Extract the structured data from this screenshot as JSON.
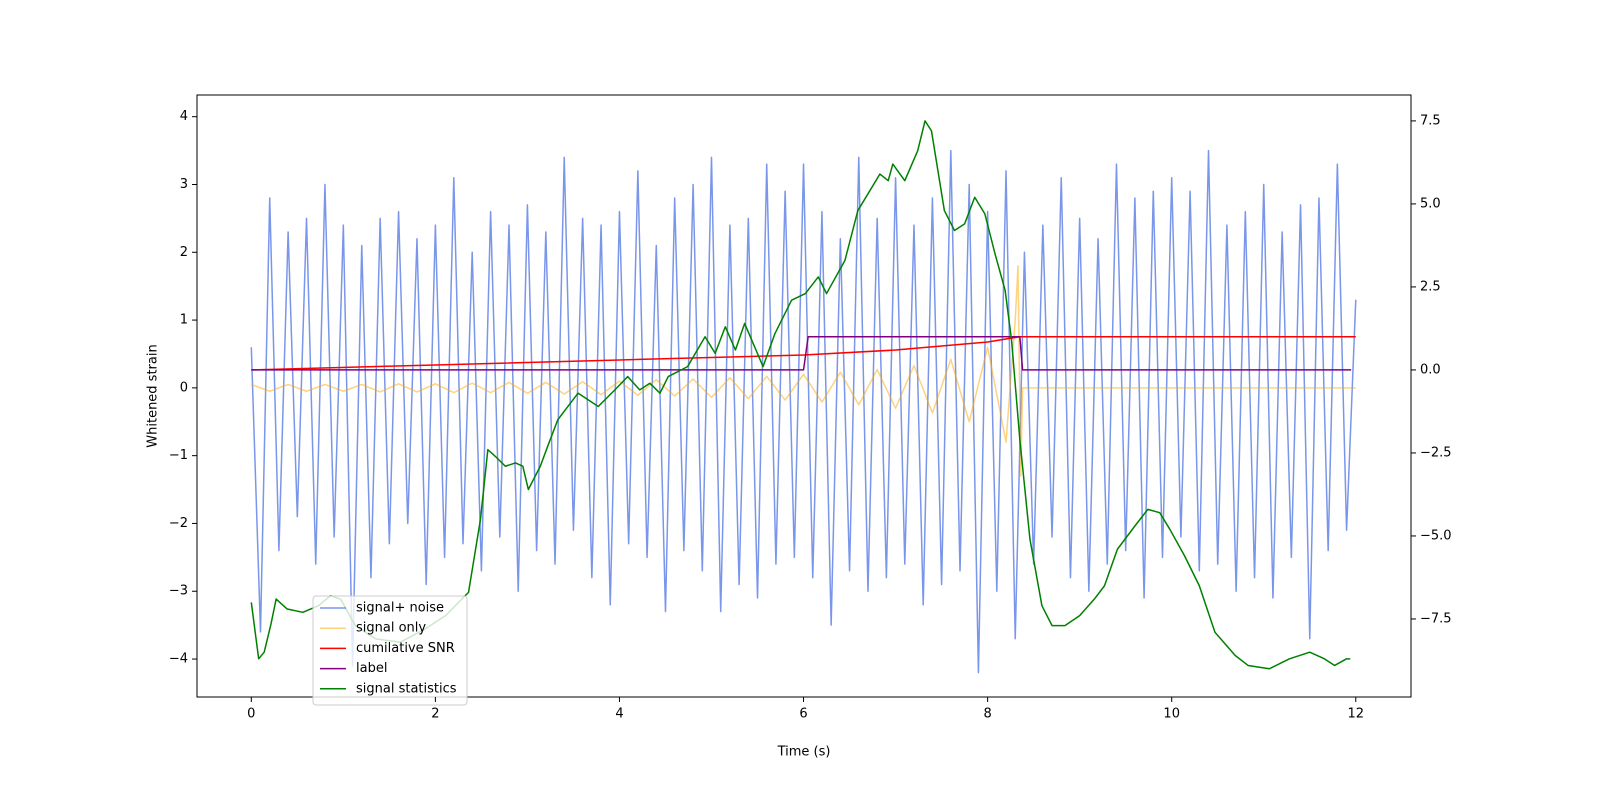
{
  "chart_data": {
    "type": "line",
    "xlabel": "Time (s)",
    "ylabel": "Whitened strain",
    "xlim": [
      -0.59,
      12.6
    ],
    "ylim": [
      -4.56,
      4.32
    ],
    "y2lim": [
      -9.85,
      8.28
    ],
    "xticks": [
      0,
      2,
      4,
      6,
      8,
      10,
      12
    ],
    "yticks": [
      {
        "value": -4,
        "label": "−4"
      },
      {
        "value": -3,
        "label": "−3"
      },
      {
        "value": -2,
        "label": "−2"
      },
      {
        "value": -1,
        "label": "−1"
      },
      0,
      1,
      2,
      3,
      4
    ],
    "y2ticks": [
      {
        "value": -7.5,
        "label": "−7.5"
      },
      {
        "value": -5.0,
        "label": "−5.0"
      },
      {
        "value": -2.5,
        "label": "−2.5"
      },
      {
        "value": 0.0,
        "label": "0.0"
      },
      2.5,
      {
        "value": 5.0,
        "label": "5.0"
      },
      7.5
    ],
    "legend": "lower left",
    "series": [
      {
        "name": "signal+ noise",
        "color": "royalblue",
        "alpha": 0.7,
        "axis": "y",
        "x": [
          0,
          0.1,
          0.2,
          0.3,
          0.4,
          0.5,
          0.6,
          0.7,
          0.8,
          0.9,
          1,
          1.1,
          1.2,
          1.3,
          1.4,
          1.5,
          1.6,
          1.7,
          1.8,
          1.9,
          2,
          2.1,
          2.2,
          2.3,
          2.4,
          2.5,
          2.6,
          2.7,
          2.8,
          2.9,
          3,
          3.1,
          3.2,
          3.3,
          3.4,
          3.5,
          3.6,
          3.7,
          3.8,
          3.9,
          4,
          4.1,
          4.2,
          4.3,
          4.4,
          4.5,
          4.6,
          4.7,
          4.8,
          4.9,
          5,
          5.1,
          5.2,
          5.3,
          5.4,
          5.5,
          5.6,
          5.7,
          5.8,
          5.9,
          6,
          6.1,
          6.2,
          6.3,
          6.4,
          6.5,
          6.6,
          6.7,
          6.8,
          6.9,
          7,
          7.1,
          7.2,
          7.3,
          7.4,
          7.5,
          7.6,
          7.7,
          7.8,
          7.9,
          8,
          8.1,
          8.2,
          8.3,
          8.4,
          8.5,
          8.6,
          8.7,
          8.8,
          8.9,
          9,
          9.1,
          9.2,
          9.3,
          9.4,
          9.5,
          9.6,
          9.7,
          9.8,
          9.9,
          10,
          10.1,
          10.2,
          10.3,
          10.4,
          10.5,
          10.6,
          10.7,
          10.8,
          10.9,
          11,
          11.1,
          11.2,
          11.3,
          11.4,
          11.5,
          11.6,
          11.7,
          11.8,
          11.9,
          12
        ],
        "values": [
          0.6,
          -3.6,
          2.8,
          -2.4,
          2.3,
          -1.9,
          2.5,
          -2.6,
          3.0,
          -2.2,
          2.4,
          -4.1,
          2.1,
          -2.8,
          2.5,
          -2.3,
          2.6,
          -2.0,
          2.2,
          -2.9,
          2.4,
          -2.5,
          3.1,
          -2.3,
          2.0,
          -2.7,
          2.6,
          -2.2,
          2.4,
          -3.0,
          2.7,
          -2.4,
          2.3,
          -2.6,
          3.4,
          -2.1,
          2.5,
          -2.8,
          2.4,
          -3.2,
          2.6,
          -2.3,
          3.2,
          -2.5,
          2.1,
          -3.3,
          2.8,
          -2.4,
          3.0,
          -2.7,
          3.4,
          -3.3,
          2.4,
          -2.9,
          2.5,
          -3.1,
          3.3,
          -2.6,
          2.9,
          -2.5,
          3.3,
          -2.8,
          2.6,
          -3.5,
          2.2,
          -2.7,
          3.4,
          -3.0,
          2.5,
          -2.8,
          3.1,
          -2.6,
          2.4,
          -3.2,
          2.8,
          -2.9,
          3.5,
          -2.7,
          3.0,
          -4.2,
          2.6,
          -3.0,
          3.2,
          -3.7,
          2.0,
          -2.6,
          2.4,
          -2.2,
          3.1,
          -2.8,
          2.5,
          -3.0,
          2.2,
          -2.6,
          3.3,
          -2.4,
          2.8,
          -3.1,
          2.9,
          -2.5,
          3.1,
          -2.2,
          2.9,
          -2.7,
          3.5,
          -2.6,
          2.4,
          -3.0,
          2.6,
          -2.8,
          3.0,
          -3.1,
          2.3,
          -2.5,
          2.7,
          -3.7,
          2.8,
          -2.4,
          3.3,
          -2.1,
          1.3
        ]
      },
      {
        "name": "signal only",
        "color": "orange",
        "alpha": 0.5,
        "axis": "y",
        "x": [
          0,
          0.2,
          0.4,
          0.6,
          0.8,
          1,
          1.2,
          1.4,
          1.6,
          1.8,
          2,
          2.2,
          2.4,
          2.6,
          2.8,
          3,
          3.2,
          3.4,
          3.6,
          3.8,
          4,
          4.2,
          4.4,
          4.6,
          4.8,
          5,
          5.2,
          5.4,
          5.6,
          5.8,
          6,
          6.2,
          6.4,
          6.6,
          6.8,
          7,
          7.2,
          7.4,
          7.6,
          7.8,
          8,
          8.2,
          8.3,
          8.33,
          8.36,
          8.38,
          12
        ],
        "values": [
          0.05,
          -0.05,
          0.05,
          -0.05,
          0.05,
          -0.05,
          0.05,
          -0.06,
          0.06,
          -0.06,
          0.06,
          -0.07,
          0.07,
          -0.07,
          0.08,
          -0.08,
          0.08,
          -0.09,
          0.09,
          -0.1,
          0.1,
          -0.11,
          0.12,
          -0.12,
          0.13,
          -0.14,
          0.15,
          -0.16,
          0.17,
          -0.18,
          0.2,
          -0.21,
          0.23,
          -0.25,
          0.27,
          -0.3,
          0.33,
          -0.37,
          0.42,
          -0.5,
          0.6,
          -0.8,
          1.0,
          1.8,
          -1.3,
          0,
          0
        ]
      },
      {
        "name": "cumilative SNR",
        "color": "red",
        "alpha": 1,
        "axis": "y2",
        "x": [
          0,
          2,
          4,
          6,
          7,
          7.5,
          8,
          8.35,
          12
        ],
        "values": [
          0,
          0.15,
          0.3,
          0.45,
          0.6,
          0.72,
          0.84,
          1,
          1
        ]
      },
      {
        "name": "label",
        "color": "purple",
        "alpha": 1,
        "axis": "y2",
        "x": [
          0,
          6.0,
          6.05,
          8.35,
          8.38,
          11.95
        ],
        "values": [
          0,
          0,
          1,
          1,
          0,
          0
        ]
      },
      {
        "name": "signal statistics",
        "color": "green",
        "alpha": 1,
        "axis": "y2",
        "x": [
          0,
          0.08,
          0.14,
          0.21,
          0.27,
          0.39,
          0.56,
          0.73,
          0.86,
          0.97,
          1.13,
          1.35,
          1.62,
          1.89,
          2.11,
          2.36,
          2.49,
          2.57,
          2.65,
          2.76,
          2.87,
          2.95,
          3.01,
          3.14,
          3.22,
          3.33,
          3.44,
          3.55,
          3.77,
          3.95,
          4.09,
          4.22,
          4.33,
          4.44,
          4.53,
          4.74,
          4.93,
          5.04,
          5.15,
          5.26,
          5.36,
          5.56,
          5.69,
          5.87,
          6.02,
          6.16,
          6.25,
          6.45,
          6.59,
          6.83,
          6.92,
          6.97,
          7.1,
          7.24,
          7.32,
          7.39,
          7.53,
          7.64,
          7.75,
          7.86,
          7.97,
          8.08,
          8.19,
          8.26,
          8.35,
          8.46,
          8.59,
          8.7,
          8.84,
          9.0,
          9.16,
          9.27,
          9.41,
          9.6,
          9.74,
          9.87,
          9.98,
          10.14,
          10.3,
          10.47,
          10.69,
          10.83,
          11.06,
          11.28,
          11.5,
          11.66,
          11.77,
          11.9,
          11.94
        ],
        "values": [
          -7.0,
          -8.7,
          -8.5,
          -7.7,
          -6.9,
          -7.2,
          -7.3,
          -7.1,
          -6.8,
          -6.9,
          -7.7,
          -8.1,
          -8.2,
          -7.8,
          -7.4,
          -6.7,
          -4.5,
          -2.4,
          -2.6,
          -2.9,
          -2.8,
          -2.9,
          -3.6,
          -2.9,
          -2.3,
          -1.5,
          -1.1,
          -0.7,
          -1.1,
          -0.6,
          -0.2,
          -0.6,
          -0.4,
          -0.7,
          -0.2,
          0.1,
          1.0,
          0.5,
          1.3,
          0.6,
          1.4,
          0.1,
          1.1,
          2.1,
          2.3,
          2.8,
          2.3,
          3.3,
          4.8,
          5.9,
          5.7,
          6.2,
          5.7,
          6.6,
          7.5,
          7.2,
          4.8,
          4.2,
          4.4,
          5.2,
          4.7,
          3.5,
          2.4,
          0.9,
          -2.1,
          -5.1,
          -7.1,
          -7.7,
          -7.7,
          -7.4,
          -6.9,
          -6.5,
          -5.4,
          -4.7,
          -4.2,
          -4.3,
          -4.8,
          -5.6,
          -6.5,
          -7.9,
          -8.6,
          -8.9,
          -9.0,
          -8.7,
          -8.5,
          -8.7,
          -8.9,
          -8.7,
          -8.7
        ]
      }
    ]
  }
}
